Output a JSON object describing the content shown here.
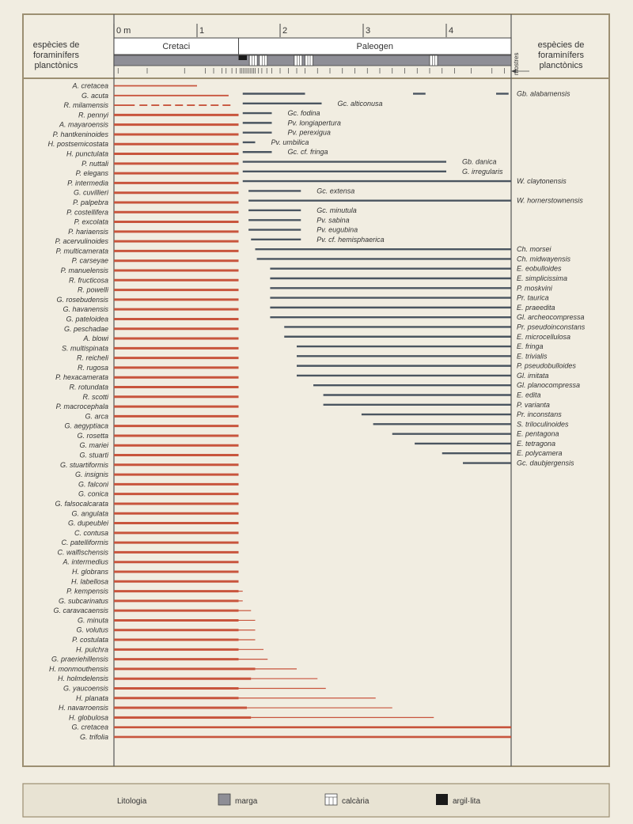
{
  "header": {
    "left_title": [
      "espècies de",
      "foraminífers",
      "planctònics"
    ],
    "right_title": [
      "espècies de",
      "foraminífers",
      "planctònics"
    ],
    "scale_labels": [
      "0 m",
      "1",
      "2",
      "3",
      "4"
    ],
    "periods": [
      "Cretaci",
      "Paleogen"
    ],
    "samples_label": "mostres"
  },
  "scale": {
    "min_m": 0,
    "max_m": 4.8,
    "boundary_m": 1.5
  },
  "colors": {
    "cretaceous": "#c8553d",
    "paleogene": "#4a5560",
    "marl": "#8e8e96",
    "frame": "#9c8f72",
    "claystone": "#1a1a1a"
  },
  "limestone_layers_m": [
    1.63,
    1.75,
    2.17,
    2.3,
    3.8
  ],
  "claystone_m": [
    1.5,
    1.6
  ],
  "cretaceous_species": [
    {
      "name": "A. cretacea",
      "end": 1.0
    },
    {
      "name": "G. acuta",
      "end": 1.38
    },
    {
      "name": "R. milamensis",
      "end": 0.25,
      "dashed_to": 1.45
    },
    {
      "name": "R. pennyi",
      "end": 1.5
    },
    {
      "name": "A. mayaroensis",
      "end": 1.5
    },
    {
      "name": "P. hantkeninoides",
      "end": 1.5
    },
    {
      "name": "H. postsemicostata",
      "end": 1.5
    },
    {
      "name": "H. punctulata",
      "end": 1.5
    },
    {
      "name": "P. nuttali",
      "end": 1.5
    },
    {
      "name": "P. elegans",
      "end": 1.5
    },
    {
      "name": "P. intermedia",
      "end": 1.5
    },
    {
      "name": "G. cuvillieri",
      "end": 1.5
    },
    {
      "name": "P. palpebra",
      "end": 1.5
    },
    {
      "name": "P. costellifera",
      "end": 1.5
    },
    {
      "name": "P. excolata",
      "end": 1.5
    },
    {
      "name": "P. hariaensis",
      "end": 1.5
    },
    {
      "name": "P. acervulinoides",
      "end": 1.5
    },
    {
      "name": "P. multicamerata",
      "end": 1.5
    },
    {
      "name": "P. carseyae",
      "end": 1.5
    },
    {
      "name": "P. manuelensis",
      "end": 1.5
    },
    {
      "name": "R. fructicosa",
      "end": 1.5
    },
    {
      "name": "R. powelli",
      "end": 1.5
    },
    {
      "name": "G. rosebudensis",
      "end": 1.5
    },
    {
      "name": "G. havanensis",
      "end": 1.5
    },
    {
      "name": "G. pateloidea",
      "end": 1.5
    },
    {
      "name": "G. peschadae",
      "end": 1.5
    },
    {
      "name": "A. blowi",
      "end": 1.5
    },
    {
      "name": "S. multispinata",
      "end": 1.5
    },
    {
      "name": "R. reicheli",
      "end": 1.5
    },
    {
      "name": "R. rugosa",
      "end": 1.5
    },
    {
      "name": "P. hexacamerata",
      "end": 1.5
    },
    {
      "name": "R. rotundata",
      "end": 1.5
    },
    {
      "name": "R. scotti",
      "end": 1.5
    },
    {
      "name": "P. macrocephala",
      "end": 1.5
    },
    {
      "name": "G. arca",
      "end": 1.5
    },
    {
      "name": "G. aegyptiaca",
      "end": 1.5
    },
    {
      "name": "G. rosetta",
      "end": 1.5
    },
    {
      "name": "G. mariei",
      "end": 1.5
    },
    {
      "name": "G. stuarti",
      "end": 1.5
    },
    {
      "name": "G. stuartiformis",
      "end": 1.5
    },
    {
      "name": "G. insignis",
      "end": 1.5
    },
    {
      "name": "G. falconi",
      "end": 1.5
    },
    {
      "name": "G. conica",
      "end": 1.5
    },
    {
      "name": "G. falsocalcarata",
      "end": 1.5
    },
    {
      "name": "G. angulata",
      "end": 1.5
    },
    {
      "name": "G. dupeublei",
      "end": 1.5
    },
    {
      "name": "C. contusa",
      "end": 1.5
    },
    {
      "name": "C. patelliformis",
      "end": 1.5
    },
    {
      "name": "C. walfischensis",
      "end": 1.5
    },
    {
      "name": "A. intermedius",
      "end": 1.5
    },
    {
      "name": "H. globrans",
      "end": 1.5
    },
    {
      "name": "H. labellosa",
      "end": 1.5
    },
    {
      "name": "P. kempensis",
      "end": 1.5,
      "thin_to": 1.55
    },
    {
      "name": "G. subcarinatus",
      "end": 1.5,
      "thin_to": 1.55
    },
    {
      "name": "G. caravacaensis",
      "end": 1.5,
      "thin_to": 1.65
    },
    {
      "name": "G. minuta",
      "end": 1.5,
      "thin_to": 1.7
    },
    {
      "name": "G. volutus",
      "end": 1.5,
      "thin_to": 1.7
    },
    {
      "name": "P. costulata",
      "end": 1.5,
      "thin_to": 1.7
    },
    {
      "name": "H. pulchra",
      "end": 1.5,
      "thin_to": 1.8
    },
    {
      "name": "G. praeriehillensis",
      "end": 1.5,
      "thin_to": 1.85
    },
    {
      "name": "H. monmouthensis",
      "end": 1.7,
      "thin_to": 2.2
    },
    {
      "name": "H. holmdelensis",
      "end": 1.65,
      "thin_to": 2.45
    },
    {
      "name": "G. yaucoensis",
      "end": 1.5,
      "thin_to": 2.55
    },
    {
      "name": "H. planata",
      "end": 1.5,
      "thin_to": 3.15
    },
    {
      "name": "H. navarroensis",
      "end": 1.6,
      "thin_to": 3.35
    },
    {
      "name": "H. globulosa",
      "end": 1.65,
      "thin_to": 3.85
    },
    {
      "name": "G. cretacea",
      "end": 4.8
    },
    {
      "name": "G. trifolia",
      "end": 4.8
    }
  ],
  "paleogene_species": [
    {
      "name": "Gb. alabamensis",
      "segments": [
        [
          1.55,
          2.3
        ],
        [
          3.6,
          3.75
        ],
        [
          4.6,
          4.75
        ]
      ],
      "label_side": "right"
    },
    {
      "name": "Gc. alticonusa",
      "segments": [
        [
          1.55,
          2.5
        ]
      ]
    },
    {
      "name": "Gc. fodina",
      "segments": [
        [
          1.55,
          1.9
        ]
      ]
    },
    {
      "name": "Pv. longiapertura",
      "segments": [
        [
          1.55,
          1.9
        ]
      ]
    },
    {
      "name": "Pv. perexigua",
      "segments": [
        [
          1.55,
          1.9
        ]
      ]
    },
    {
      "name": "Pv. umbilica",
      "segments": [
        [
          1.55,
          1.7
        ]
      ]
    },
    {
      "name": "Gc. cf. fringa",
      "segments": [
        [
          1.55,
          1.9
        ]
      ]
    },
    {
      "name": "Gb. danica",
      "segments": [
        [
          1.55,
          4.0
        ]
      ]
    },
    {
      "name": "G. irregularis",
      "segments": [
        [
          1.55,
          4.0
        ]
      ]
    },
    {
      "name": "W. claytonensis",
      "segments": [
        [
          1.55,
          4.8
        ]
      ],
      "label_side": "right"
    },
    {
      "name": "Gc. extensa",
      "segments": [
        [
          1.62,
          2.25
        ]
      ]
    },
    {
      "name": "W. hornerstownensis",
      "segments": [
        [
          1.62,
          4.8
        ]
      ],
      "label_side": "right"
    },
    {
      "name": "Gc. minutula",
      "segments": [
        [
          1.62,
          2.25
        ]
      ]
    },
    {
      "name": "Pv. sabina",
      "segments": [
        [
          1.62,
          2.25
        ]
      ]
    },
    {
      "name": "Pv. eugubina",
      "segments": [
        [
          1.62,
          2.25
        ]
      ]
    },
    {
      "name": "Pv. cf. hemisphaerica",
      "segments": [
        [
          1.65,
          2.25
        ]
      ]
    },
    {
      "name": "Ch. morsei",
      "segments": [
        [
          1.7,
          4.8
        ]
      ],
      "label_side": "right"
    },
    {
      "name": "Ch. midwayensis",
      "segments": [
        [
          1.72,
          4.8
        ]
      ],
      "label_side": "right"
    },
    {
      "name": "E. eobulloides",
      "segments": [
        [
          1.88,
          4.8
        ]
      ],
      "label_side": "right"
    },
    {
      "name": "E. simplicissima",
      "segments": [
        [
          1.88,
          4.8
        ]
      ],
      "label_side": "right"
    },
    {
      "name": "P. moskvini",
      "segments": [
        [
          1.88,
          4.8
        ]
      ],
      "label_side": "right"
    },
    {
      "name": "Pr. taurica",
      "segments": [
        [
          1.88,
          4.8
        ]
      ],
      "label_side": "right"
    },
    {
      "name": "E. praeedita",
      "segments": [
        [
          1.88,
          4.8
        ]
      ],
      "label_side": "right"
    },
    {
      "name": "Gl. archeocompressa",
      "segments": [
        [
          1.88,
          4.8
        ]
      ],
      "label_side": "right"
    },
    {
      "name": "Pr. pseudoinconstans",
      "segments": [
        [
          2.05,
          4.8
        ]
      ],
      "label_side": "right"
    },
    {
      "name": "E. microcellulosa",
      "segments": [
        [
          2.05,
          4.8
        ]
      ],
      "label_side": "right"
    },
    {
      "name": "E. fringa",
      "segments": [
        [
          2.2,
          4.8
        ]
      ],
      "label_side": "right"
    },
    {
      "name": "E. trivialis",
      "segments": [
        [
          2.2,
          4.8
        ]
      ],
      "label_side": "right"
    },
    {
      "name": "P. pseudobulloides",
      "segments": [
        [
          2.2,
          4.8
        ]
      ],
      "label_side": "right"
    },
    {
      "name": "Gl. imitata",
      "segments": [
        [
          2.2,
          4.8
        ]
      ],
      "label_side": "right"
    },
    {
      "name": "Gl. planocompressa",
      "segments": [
        [
          2.4,
          4.8
        ]
      ],
      "label_side": "right"
    },
    {
      "name": "E. edita",
      "segments": [
        [
          2.52,
          4.8
        ]
      ],
      "label_side": "right"
    },
    {
      "name": "P. varianta",
      "segments": [
        [
          2.52,
          4.8
        ]
      ],
      "label_side": "right"
    },
    {
      "name": "Pr. inconstans",
      "segments": [
        [
          2.98,
          4.8
        ]
      ],
      "label_side": "right"
    },
    {
      "name": "S. triloculinoides",
      "segments": [
        [
          3.12,
          4.8
        ]
      ],
      "label_side": "right"
    },
    {
      "name": "E. pentagona",
      "segments": [
        [
          3.35,
          4.8
        ]
      ],
      "label_side": "right"
    },
    {
      "name": "E. tetragona",
      "segments": [
        [
          3.62,
          4.8
        ]
      ],
      "label_side": "right"
    },
    {
      "name": "E. polycamera",
      "segments": [
        [
          3.95,
          4.8
        ]
      ],
      "label_side": "right"
    },
    {
      "name": "Gc. daubjergensis",
      "segments": [
        [
          4.2,
          4.8
        ]
      ],
      "label_side": "right"
    }
  ],
  "legend": {
    "title": "Litologia",
    "items": [
      {
        "label": "marga",
        "type": "marl"
      },
      {
        "label": "calcària",
        "type": "limestone"
      },
      {
        "label": "argil·lita",
        "type": "claystone"
      }
    ]
  }
}
